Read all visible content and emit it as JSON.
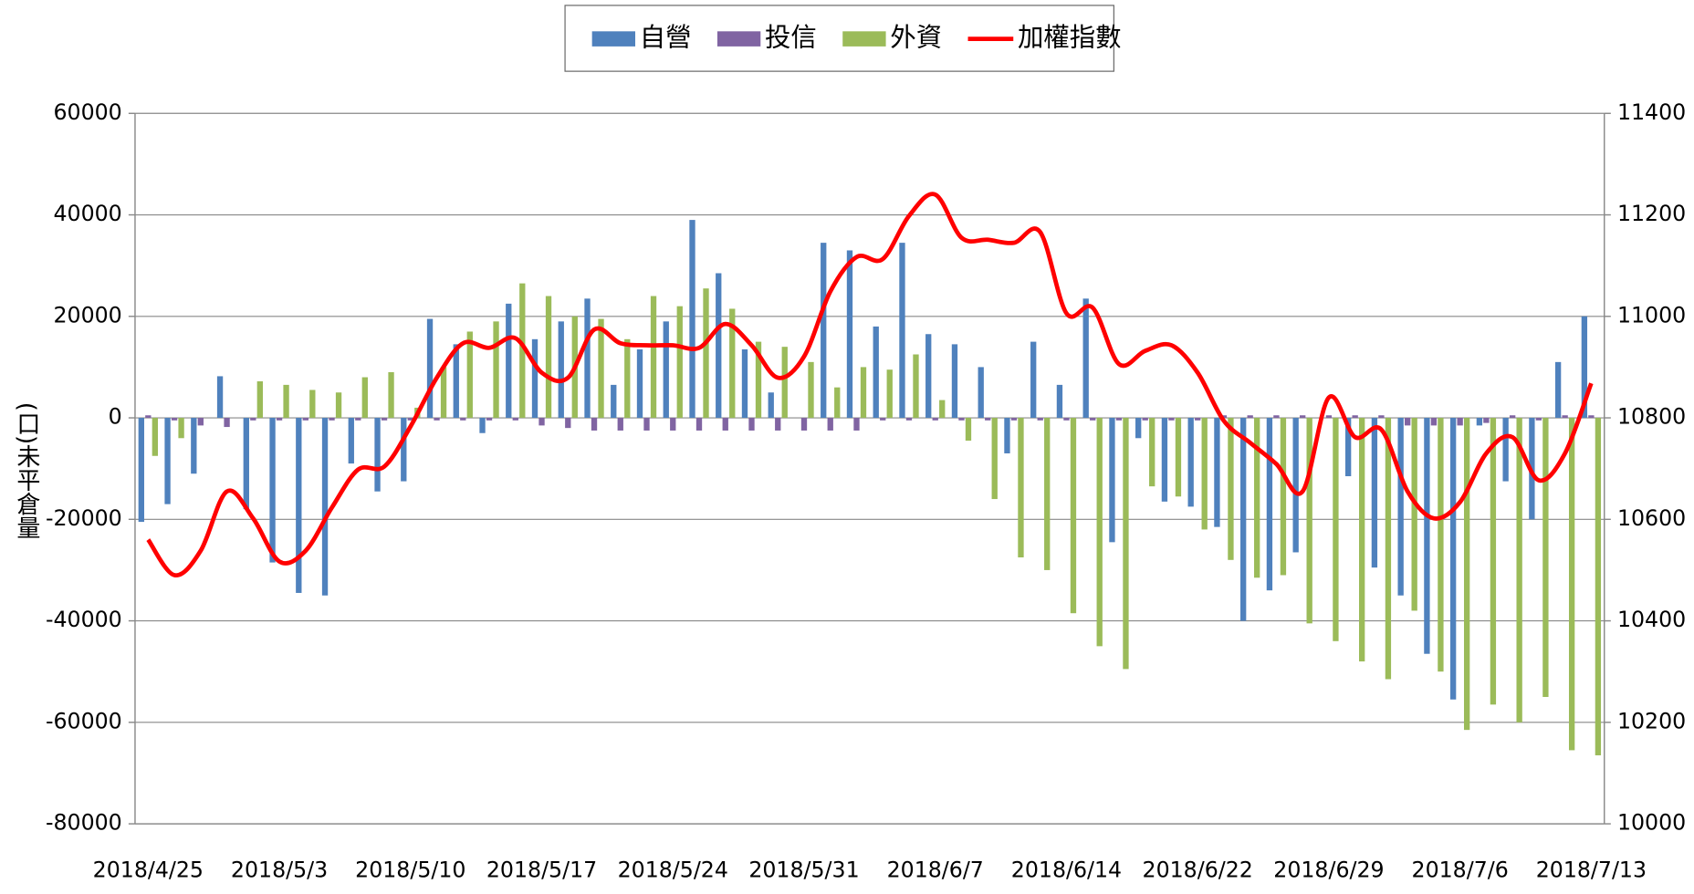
{
  "chart_data": {
    "type": "bar-line",
    "y_label": "(口)未平倉量",
    "categories": [
      "2018/4/25",
      null,
      null,
      null,
      null,
      "2018/5/3",
      null,
      null,
      null,
      null,
      "2018/5/10",
      null,
      null,
      null,
      null,
      "2018/5/17",
      null,
      null,
      null,
      null,
      "2018/5/24",
      null,
      null,
      null,
      null,
      "2018/5/31",
      null,
      null,
      null,
      null,
      "2018/6/7",
      null,
      null,
      null,
      null,
      "2018/6/14",
      null,
      null,
      null,
      null,
      "2018/6/22",
      null,
      null,
      null,
      null,
      "2018/6/29",
      null,
      null,
      null,
      null,
      "2018/7/6",
      null,
      null,
      null,
      null,
      "2018/7/13"
    ],
    "series": [
      {
        "name": "自營",
        "type": "bar",
        "color": "#4f81bd",
        "values": [
          -20500,
          -17000,
          -11000,
          8200,
          -18000,
          -28500,
          -34500,
          -35000,
          -9000,
          -14500,
          -12500,
          19500,
          14500,
          -3000,
          22500,
          15500,
          19000,
          23500,
          6500,
          13500,
          19000,
          39000,
          28500,
          13500,
          5000,
          0,
          34500,
          33000,
          18000,
          34500,
          16500,
          14500,
          10000,
          -7000,
          15000,
          6500,
          23500,
          -24500,
          -4000,
          -16500,
          -17500,
          -21500,
          -40000,
          -34000,
          -26500,
          0,
          -11500,
          -29500,
          -35000,
          -46500,
          -55500,
          -1500,
          -12500,
          -20000,
          11000,
          20000
        ]
      },
      {
        "name": "投信",
        "type": "bar",
        "color": "#8064a2",
        "values": [
          500,
          -500,
          -1500,
          -1800,
          -500,
          -500,
          -500,
          -500,
          -500,
          -500,
          -500,
          -500,
          -500,
          -500,
          -500,
          -1500,
          -2000,
          -2500,
          -2500,
          -2500,
          -2500,
          -2500,
          -2500,
          -2500,
          -2500,
          -2500,
          -2500,
          -2500,
          -500,
          -500,
          -500,
          -500,
          -500,
          -500,
          -500,
          -500,
          -500,
          -500,
          -500,
          -500,
          -500,
          500,
          500,
          500,
          500,
          500,
          500,
          500,
          -1500,
          -1500,
          -1500,
          -1000,
          500,
          -500,
          500,
          500
        ]
      },
      {
        "name": "外資",
        "type": "bar",
        "color": "#9bbb59",
        "values": [
          -7500,
          -4000,
          0,
          0,
          7200,
          6500,
          5500,
          5000,
          8000,
          9000,
          2000,
          10000,
          17000,
          19000,
          26500,
          24000,
          20000,
          19500,
          15500,
          24000,
          22000,
          25500,
          21500,
          15000,
          14000,
          11000,
          6000,
          10000,
          9500,
          12500,
          3500,
          -4500,
          -16000,
          -27500,
          -30000,
          -38500,
          -45000,
          -49500,
          -13500,
          -15500,
          -22000,
          -28000,
          -31500,
          -31000,
          -40500,
          -44000,
          -48000,
          -51500,
          -38000,
          -50000,
          -61500,
          -56500,
          -60000,
          -55000,
          -65500,
          -66500
        ]
      },
      {
        "name": "加權指數",
        "type": "line",
        "axis": "y2",
        "color": "#ff0000",
        "values": [
          10560,
          10490,
          10538,
          10655,
          10602,
          10517,
          10538,
          10623,
          10698,
          10704,
          10783,
          10879,
          10947,
          10938,
          10957,
          10889,
          10879,
          10974,
          10947,
          10943,
          10943,
          10938,
          10985,
          10943,
          10879,
          10921,
          11049,
          11117,
          11113,
          11198,
          11240,
          11155,
          11151,
          11145,
          11166,
          11006,
          11017,
          10906,
          10932,
          10943,
          10889,
          10794,
          10751,
          10709,
          10655,
          10840,
          10762,
          10777,
          10655,
          10602,
          10634,
          10730,
          10762,
          10677,
          10730,
          10868
        ]
      }
    ],
    "ylim": [
      -80000,
      60000
    ],
    "yticks": [
      -80000,
      -60000,
      -40000,
      -20000,
      0,
      20000,
      40000,
      60000
    ],
    "y2lim": [
      10000,
      11400
    ],
    "y2ticks": [
      10000,
      10200,
      10400,
      10600,
      10800,
      11000,
      11200,
      11400
    ],
    "grid": true,
    "legend": "top"
  }
}
